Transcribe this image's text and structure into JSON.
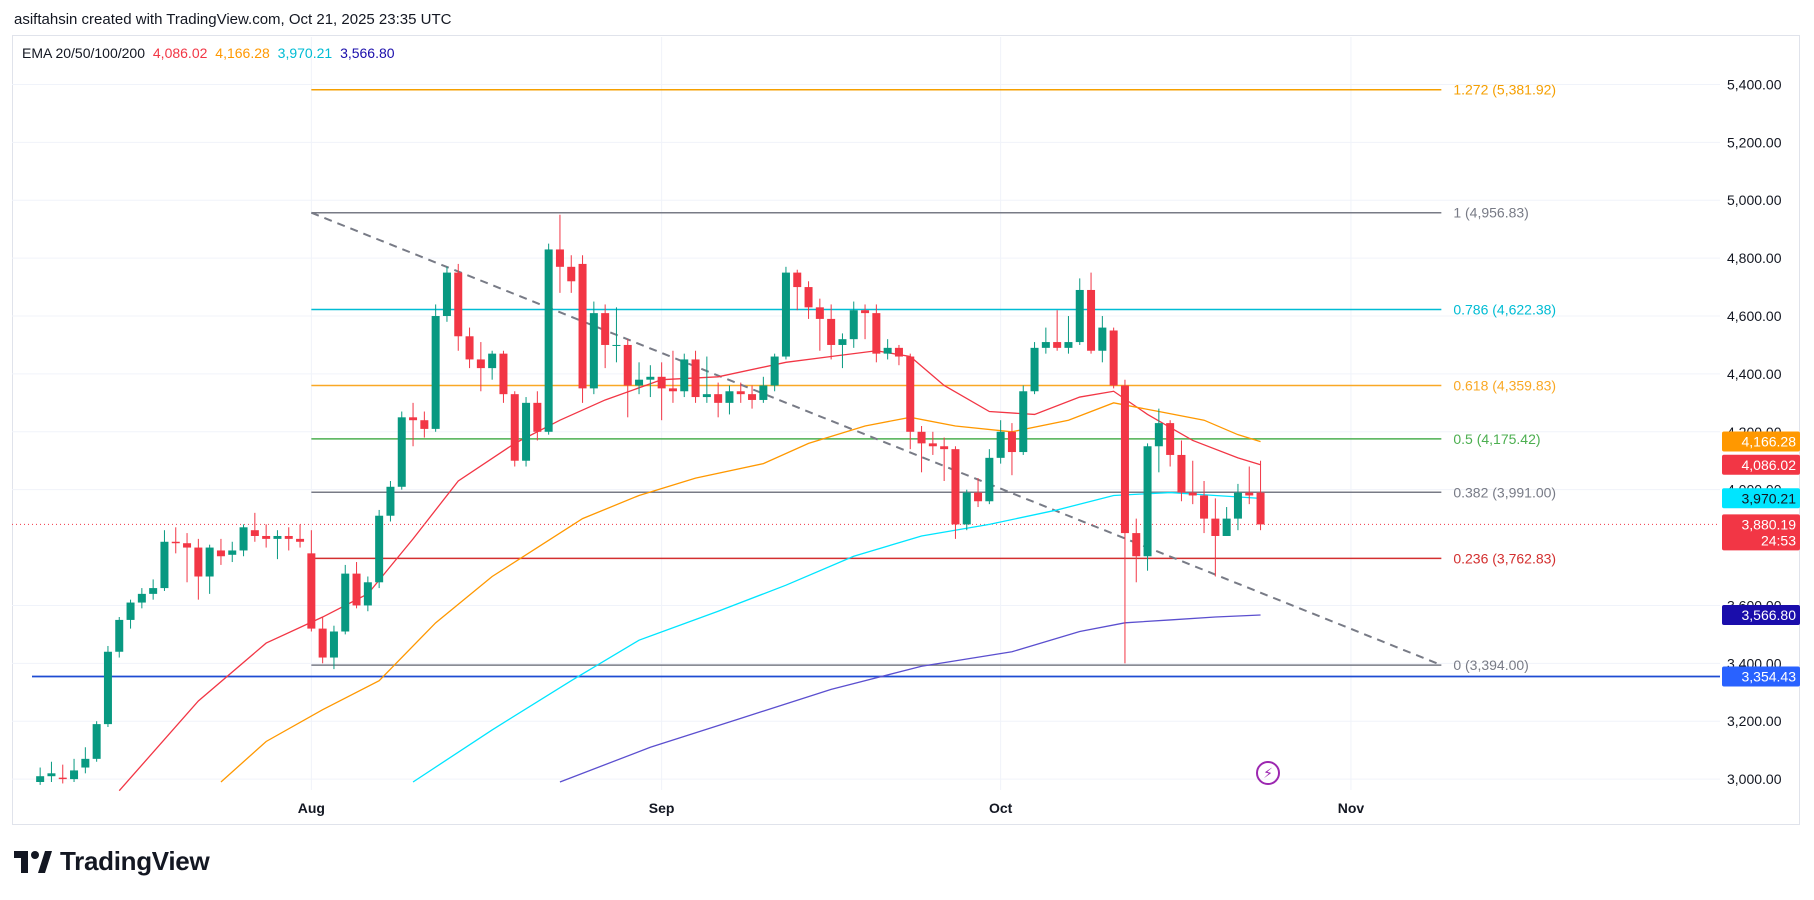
{
  "header": {
    "title": "asiftahsin created with TradingView.com, Oct 21, 2025 23:35 UTC"
  },
  "legend": {
    "label": "EMA 20/50/100/200",
    "values": [
      "4,086.02",
      "4,166.28",
      "3,970.21",
      "3,566.80"
    ]
  },
  "footer": {
    "brand": "TradingView"
  },
  "colors": {
    "up": "#089981",
    "down": "#f23645",
    "ema20": "#f23645",
    "ema50": "#ff9800",
    "ema100": "#00e5ff",
    "ema200": "#5b4fcf",
    "hline": "#1e4bd2"
  },
  "chart_data": {
    "type": "candlestick",
    "y_ticks": [
      "5,400.00",
      "5,200.00",
      "5,000.00",
      "4,800.00",
      "4,600.00",
      "4,400.00",
      "4,200.00",
      "4,000.00",
      "3,600.00",
      "3,400.00",
      "3,200.00",
      "3,000.00"
    ],
    "x_ticks": [
      {
        "label": "Aug",
        "x": 24
      },
      {
        "label": "Sep",
        "x": 55
      },
      {
        "label": "Oct",
        "x": 85
      },
      {
        "label": "Nov",
        "x": 116
      }
    ],
    "ylim": [
      2990,
      5450
    ],
    "xlim": [
      -0.5,
      134
    ],
    "candles": [
      {
        "x": 0,
        "o": 2990,
        "h": 3040,
        "l": 2980,
        "c": 3010
      },
      {
        "x": 1,
        "o": 3010,
        "h": 3060,
        "l": 2990,
        "c": 3020
      },
      {
        "x": 2,
        "o": 3005,
        "h": 3050,
        "l": 2985,
        "c": 3000
      },
      {
        "x": 3,
        "o": 3000,
        "h": 3070,
        "l": 2990,
        "c": 3030
      },
      {
        "x": 4,
        "o": 3040,
        "h": 3110,
        "l": 3020,
        "c": 3070
      },
      {
        "x": 5,
        "o": 3070,
        "h": 3200,
        "l": 3060,
        "c": 3190
      },
      {
        "x": 6,
        "o": 3190,
        "h": 3460,
        "l": 3180,
        "c": 3440
      },
      {
        "x": 7,
        "o": 3440,
        "h": 3560,
        "l": 3420,
        "c": 3550
      },
      {
        "x": 8,
        "o": 3550,
        "h": 3620,
        "l": 3520,
        "c": 3610
      },
      {
        "x": 9,
        "o": 3610,
        "h": 3660,
        "l": 3590,
        "c": 3640
      },
      {
        "x": 10,
        "o": 3640,
        "h": 3690,
        "l": 3620,
        "c": 3660
      },
      {
        "x": 11,
        "o": 3660,
        "h": 3860,
        "l": 3650,
        "c": 3820
      },
      {
        "x": 12,
        "o": 3820,
        "h": 3870,
        "l": 3780,
        "c": 3815
      },
      {
        "x": 13,
        "o": 3815,
        "h": 3850,
        "l": 3680,
        "c": 3800
      },
      {
        "x": 14,
        "o": 3800,
        "h": 3830,
        "l": 3620,
        "c": 3700
      },
      {
        "x": 15,
        "o": 3700,
        "h": 3810,
        "l": 3640,
        "c": 3800
      },
      {
        "x": 16,
        "o": 3790,
        "h": 3830,
        "l": 3740,
        "c": 3770
      },
      {
        "x": 17,
        "o": 3775,
        "h": 3820,
        "l": 3750,
        "c": 3790
      },
      {
        "x": 18,
        "o": 3790,
        "h": 3880,
        "l": 3770,
        "c": 3870
      },
      {
        "x": 19,
        "o": 3860,
        "h": 3920,
        "l": 3820,
        "c": 3840
      },
      {
        "x": 20,
        "o": 3840,
        "h": 3880,
        "l": 3800,
        "c": 3830
      },
      {
        "x": 21,
        "o": 3830,
        "h": 3860,
        "l": 3760,
        "c": 3840
      },
      {
        "x": 22,
        "o": 3840,
        "h": 3870,
        "l": 3790,
        "c": 3830
      },
      {
        "x": 23,
        "o": 3830,
        "h": 3880,
        "l": 3800,
        "c": 3820
      },
      {
        "x": 24,
        "o": 3780,
        "h": 3860,
        "l": 3510,
        "c": 3520
      },
      {
        "x": 25,
        "o": 3520,
        "h": 3560,
        "l": 3400,
        "c": 3420
      },
      {
        "x": 26,
        "o": 3420,
        "h": 3530,
        "l": 3380,
        "c": 3510
      },
      {
        "x": 27,
        "o": 3510,
        "h": 3740,
        "l": 3500,
        "c": 3710
      },
      {
        "x": 28,
        "o": 3710,
        "h": 3750,
        "l": 3590,
        "c": 3600
      },
      {
        "x": 29,
        "o": 3600,
        "h": 3700,
        "l": 3580,
        "c": 3680
      },
      {
        "x": 30,
        "o": 3680,
        "h": 3930,
        "l": 3660,
        "c": 3910
      },
      {
        "x": 31,
        "o": 3910,
        "h": 4030,
        "l": 3890,
        "c": 4010
      },
      {
        "x": 32,
        "o": 4010,
        "h": 4270,
        "l": 4000,
        "c": 4250
      },
      {
        "x": 33,
        "o": 4250,
        "h": 4300,
        "l": 4150,
        "c": 4240
      },
      {
        "x": 34,
        "o": 4240,
        "h": 4270,
        "l": 4180,
        "c": 4210
      },
      {
        "x": 35,
        "o": 4210,
        "h": 4640,
        "l": 4200,
        "c": 4600
      },
      {
        "x": 36,
        "o": 4600,
        "h": 4770,
        "l": 4580,
        "c": 4750
      },
      {
        "x": 37,
        "o": 4750,
        "h": 4780,
        "l": 4480,
        "c": 4530
      },
      {
        "x": 38,
        "o": 4530,
        "h": 4560,
        "l": 4420,
        "c": 4450
      },
      {
        "x": 39,
        "o": 4450,
        "h": 4510,
        "l": 4340,
        "c": 4420
      },
      {
        "x": 40,
        "o": 4420,
        "h": 4480,
        "l": 4380,
        "c": 4470
      },
      {
        "x": 41,
        "o": 4470,
        "h": 4480,
        "l": 4300,
        "c": 4330
      },
      {
        "x": 42,
        "o": 4330,
        "h": 4340,
        "l": 4080,
        "c": 4100
      },
      {
        "x": 43,
        "o": 4100,
        "h": 4320,
        "l": 4080,
        "c": 4300
      },
      {
        "x": 44,
        "o": 4300,
        "h": 4340,
        "l": 4170,
        "c": 4200
      },
      {
        "x": 45,
        "o": 4200,
        "h": 4850,
        "l": 4190,
        "c": 4830
      },
      {
        "x": 46,
        "o": 4830,
        "h": 4950,
        "l": 4680,
        "c": 4770
      },
      {
        "x": 47,
        "o": 4770,
        "h": 4810,
        "l": 4680,
        "c": 4720
      },
      {
        "x": 48,
        "o": 4780,
        "h": 4810,
        "l": 4300,
        "c": 4350
      },
      {
        "x": 49,
        "o": 4350,
        "h": 4650,
        "l": 4330,
        "c": 4610
      },
      {
        "x": 50,
        "o": 4610,
        "h": 4640,
        "l": 4420,
        "c": 4500
      },
      {
        "x": 51,
        "o": 4500,
        "h": 4630,
        "l": 4440,
        "c": 4500
      },
      {
        "x": 52,
        "o": 4500,
        "h": 4520,
        "l": 4250,
        "c": 4360
      },
      {
        "x": 53,
        "o": 4360,
        "h": 4440,
        "l": 4330,
        "c": 4380
      },
      {
        "x": 54,
        "o": 4380,
        "h": 4430,
        "l": 4320,
        "c": 4390
      },
      {
        "x": 55,
        "o": 4390,
        "h": 4440,
        "l": 4240,
        "c": 4350
      },
      {
        "x": 56,
        "o": 4350,
        "h": 4480,
        "l": 4300,
        "c": 4340
      },
      {
        "x": 57,
        "o": 4340,
        "h": 4470,
        "l": 4320,
        "c": 4450
      },
      {
        "x": 58,
        "o": 4450,
        "h": 4480,
        "l": 4300,
        "c": 4320
      },
      {
        "x": 59,
        "o": 4320,
        "h": 4460,
        "l": 4300,
        "c": 4330
      },
      {
        "x": 60,
        "o": 4330,
        "h": 4370,
        "l": 4250,
        "c": 4300
      },
      {
        "x": 61,
        "o": 4300,
        "h": 4360,
        "l": 4260,
        "c": 4340
      },
      {
        "x": 62,
        "o": 4340,
        "h": 4370,
        "l": 4300,
        "c": 4330
      },
      {
        "x": 63,
        "o": 4330,
        "h": 4360,
        "l": 4280,
        "c": 4310
      },
      {
        "x": 64,
        "o": 4310,
        "h": 4390,
        "l": 4300,
        "c": 4360
      },
      {
        "x": 65,
        "o": 4360,
        "h": 4470,
        "l": 4340,
        "c": 4460
      },
      {
        "x": 66,
        "o": 4460,
        "h": 4770,
        "l": 4450,
        "c": 4750
      },
      {
        "x": 67,
        "o": 4750,
        "h": 4760,
        "l": 4620,
        "c": 4700
      },
      {
        "x": 68,
        "o": 4700,
        "h": 4720,
        "l": 4590,
        "c": 4630
      },
      {
        "x": 69,
        "o": 4630,
        "h": 4660,
        "l": 4480,
        "c": 4590
      },
      {
        "x": 70,
        "o": 4590,
        "h": 4640,
        "l": 4450,
        "c": 4500
      },
      {
        "x": 71,
        "o": 4500,
        "h": 4540,
        "l": 4420,
        "c": 4520
      },
      {
        "x": 72,
        "o": 4520,
        "h": 4650,
        "l": 4490,
        "c": 4620
      },
      {
        "x": 73,
        "o": 4620,
        "h": 4640,
        "l": 4520,
        "c": 4610
      },
      {
        "x": 74,
        "o": 4610,
        "h": 4640,
        "l": 4440,
        "c": 4470
      },
      {
        "x": 75,
        "o": 4470,
        "h": 4520,
        "l": 4450,
        "c": 4490
      },
      {
        "x": 76,
        "o": 4490,
        "h": 4500,
        "l": 4430,
        "c": 4460
      },
      {
        "x": 77,
        "o": 4460,
        "h": 4470,
        "l": 4140,
        "c": 4200
      },
      {
        "x": 78,
        "o": 4200,
        "h": 4220,
        "l": 4060,
        "c": 4160
      },
      {
        "x": 79,
        "o": 4160,
        "h": 4200,
        "l": 4120,
        "c": 4150
      },
      {
        "x": 80,
        "o": 4150,
        "h": 4180,
        "l": 4030,
        "c": 4140
      },
      {
        "x": 81,
        "o": 4140,
        "h": 4150,
        "l": 3830,
        "c": 3880
      },
      {
        "x": 82,
        "o": 3880,
        "h": 4000,
        "l": 3860,
        "c": 3990
      },
      {
        "x": 83,
        "o": 3990,
        "h": 4040,
        "l": 3940,
        "c": 3960
      },
      {
        "x": 84,
        "o": 3960,
        "h": 4140,
        "l": 3950,
        "c": 4110
      },
      {
        "x": 85,
        "o": 4110,
        "h": 4240,
        "l": 4090,
        "c": 4200
      },
      {
        "x": 86,
        "o": 4200,
        "h": 4230,
        "l": 4050,
        "c": 4130
      },
      {
        "x": 87,
        "o": 4130,
        "h": 4360,
        "l": 4120,
        "c": 4340
      },
      {
        "x": 88,
        "o": 4340,
        "h": 4510,
        "l": 4330,
        "c": 4490
      },
      {
        "x": 89,
        "o": 4490,
        "h": 4560,
        "l": 4470,
        "c": 4510
      },
      {
        "x": 90,
        "o": 4510,
        "h": 4620,
        "l": 4480,
        "c": 4490
      },
      {
        "x": 91,
        "o": 4490,
        "h": 4600,
        "l": 4470,
        "c": 4510
      },
      {
        "x": 92,
        "o": 4510,
        "h": 4730,
        "l": 4500,
        "c": 4690
      },
      {
        "x": 93,
        "o": 4690,
        "h": 4750,
        "l": 4470,
        "c": 4480
      },
      {
        "x": 94,
        "o": 4480,
        "h": 4600,
        "l": 4440,
        "c": 4560
      },
      {
        "x": 95,
        "o": 4550,
        "h": 4560,
        "l": 4350,
        "c": 4360
      },
      {
        "x": 96,
        "o": 4360,
        "h": 4380,
        "l": 3400,
        "c": 3850
      },
      {
        "x": 97,
        "o": 3850,
        "h": 3900,
        "l": 3680,
        "c": 3770
      },
      {
        "x": 98,
        "o": 3770,
        "h": 4160,
        "l": 3720,
        "c": 4150
      },
      {
        "x": 99,
        "o": 4150,
        "h": 4280,
        "l": 4060,
        "c": 4230
      },
      {
        "x": 100,
        "o": 4230,
        "h": 4240,
        "l": 4080,
        "c": 4120
      },
      {
        "x": 101,
        "o": 4120,
        "h": 4170,
        "l": 3960,
        "c": 3990
      },
      {
        "x": 102,
        "o": 3990,
        "h": 4100,
        "l": 3950,
        "c": 3980
      },
      {
        "x": 103,
        "o": 3980,
        "h": 4030,
        "l": 3850,
        "c": 3900
      },
      {
        "x": 104,
        "o": 3900,
        "h": 3970,
        "l": 3700,
        "c": 3840
      },
      {
        "x": 105,
        "o": 3840,
        "h": 3940,
        "l": 3840,
        "c": 3900
      },
      {
        "x": 106,
        "o": 3900,
        "h": 4020,
        "l": 3860,
        "c": 3990
      },
      {
        "x": 107,
        "o": 3990,
        "h": 4080,
        "l": 3950,
        "c": 3980
      },
      {
        "x": 108,
        "o": 3990,
        "h": 4100,
        "l": 3860,
        "c": 3880
      }
    ],
    "ema": [
      {
        "name": "EMA 20",
        "color": "#f23645",
        "points": [
          [
            7,
            2960
          ],
          [
            14,
            3270
          ],
          [
            20,
            3470
          ],
          [
            25,
            3560
          ],
          [
            29,
            3640
          ],
          [
            33,
            3830
          ],
          [
            37,
            4030
          ],
          [
            42,
            4160
          ],
          [
            46,
            4240
          ],
          [
            50,
            4310
          ],
          [
            55,
            4380
          ],
          [
            60,
            4390
          ],
          [
            66,
            4440
          ],
          [
            70,
            4460
          ],
          [
            74,
            4480
          ],
          [
            77,
            4460
          ],
          [
            80,
            4360
          ],
          [
            84,
            4270
          ],
          [
            88,
            4260
          ],
          [
            92,
            4320
          ],
          [
            95,
            4340
          ],
          [
            98,
            4260
          ],
          [
            102,
            4170
          ],
          [
            106,
            4110
          ],
          [
            108,
            4086
          ]
        ]
      },
      {
        "name": "EMA 50",
        "color": "#ff9800",
        "points": [
          [
            16,
            2990
          ],
          [
            20,
            3130
          ],
          [
            25,
            3240
          ],
          [
            30,
            3340
          ],
          [
            35,
            3540
          ],
          [
            40,
            3700
          ],
          [
            44,
            3800
          ],
          [
            48,
            3900
          ],
          [
            53,
            3980
          ],
          [
            58,
            4040
          ],
          [
            64,
            4090
          ],
          [
            68,
            4160
          ],
          [
            73,
            4220
          ],
          [
            77,
            4250
          ],
          [
            81,
            4220
          ],
          [
            86,
            4200
          ],
          [
            91,
            4240
          ],
          [
            95,
            4300
          ],
          [
            99,
            4270
          ],
          [
            103,
            4240
          ],
          [
            106,
            4190
          ],
          [
            108,
            4166
          ]
        ]
      },
      {
        "name": "EMA 100",
        "color": "#00e5ff",
        "points": [
          [
            33,
            2990
          ],
          [
            40,
            3170
          ],
          [
            47,
            3340
          ],
          [
            53,
            3480
          ],
          [
            60,
            3580
          ],
          [
            66,
            3670
          ],
          [
            72,
            3770
          ],
          [
            78,
            3840
          ],
          [
            84,
            3880
          ],
          [
            90,
            3930
          ],
          [
            95,
            3980
          ],
          [
            100,
            3990
          ],
          [
            104,
            3980
          ],
          [
            108,
            3970
          ]
        ]
      },
      {
        "name": "EMA 200",
        "color": "#5b4fcf",
        "points": [
          [
            46,
            2990
          ],
          [
            54,
            3110
          ],
          [
            62,
            3210
          ],
          [
            70,
            3310
          ],
          [
            78,
            3390
          ],
          [
            86,
            3440
          ],
          [
            92,
            3510
          ],
          [
            96,
            3540
          ],
          [
            100,
            3550
          ],
          [
            104,
            3560
          ],
          [
            108,
            3567
          ]
        ]
      }
    ],
    "fib_levels": [
      {
        "ratio": "1.272",
        "label": "1.272 (5,381.92)",
        "price": 5381.92,
        "color": "#f59f00"
      },
      {
        "ratio": "1",
        "label": "1 (4,956.83)",
        "price": 4956.83,
        "color": "#787b86"
      },
      {
        "ratio": "0.786",
        "label": "0.786 (4,622.38)",
        "price": 4622.38,
        "color": "#00bcd4"
      },
      {
        "ratio": "0.618",
        "label": "0.618 (4,359.83)",
        "price": 4359.83,
        "color": "#f9a825"
      },
      {
        "ratio": "0.5",
        "label": "0.5 (4,175.42)",
        "price": 4175.42,
        "color": "#4caf50"
      },
      {
        "ratio": "0.382",
        "label": "0.382 (3,991.00)",
        "price": 3991.0,
        "color": "#787b86"
      },
      {
        "ratio": "0.236",
        "label": "0.236 (3,762.83)",
        "price": 3762.83,
        "color": "#d32f2f"
      },
      {
        "ratio": "0",
        "label": "0 (3,394.00)",
        "price": 3394.0,
        "color": "#787b86"
      }
    ],
    "fib_x_start": 24,
    "fib_x_end": 124,
    "trendline": {
      "from": [
        24,
        4956.83
      ],
      "to": [
        124,
        3394
      ]
    },
    "horizontal_line": {
      "price": 3354.43
    },
    "current_price_line": {
      "price": 3880.19
    },
    "price_badges": [
      {
        "text": "4,166.28",
        "price": 4166.28,
        "bg": "#ff9800",
        "fg": "#ffffff"
      },
      {
        "text": "4,086.02",
        "price": 4086.02,
        "bg": "#f23645",
        "fg": "#ffffff"
      },
      {
        "text": "3,970.21",
        "price": 3970.21,
        "bg": "#00e5ff",
        "fg": "#131722"
      },
      {
        "text": "3,880.19",
        "sub": "24:53",
        "price": 3880.19,
        "bg": "#f23645",
        "fg": "#ffffff"
      },
      {
        "text": "3,566.80",
        "price": 3566.8,
        "bg": "#1a0dab",
        "fg": "#ffffff"
      },
      {
        "text": "3,354.43",
        "price": 3354.43,
        "bg": "#2962ff",
        "fg": "#ffffff"
      }
    ]
  }
}
